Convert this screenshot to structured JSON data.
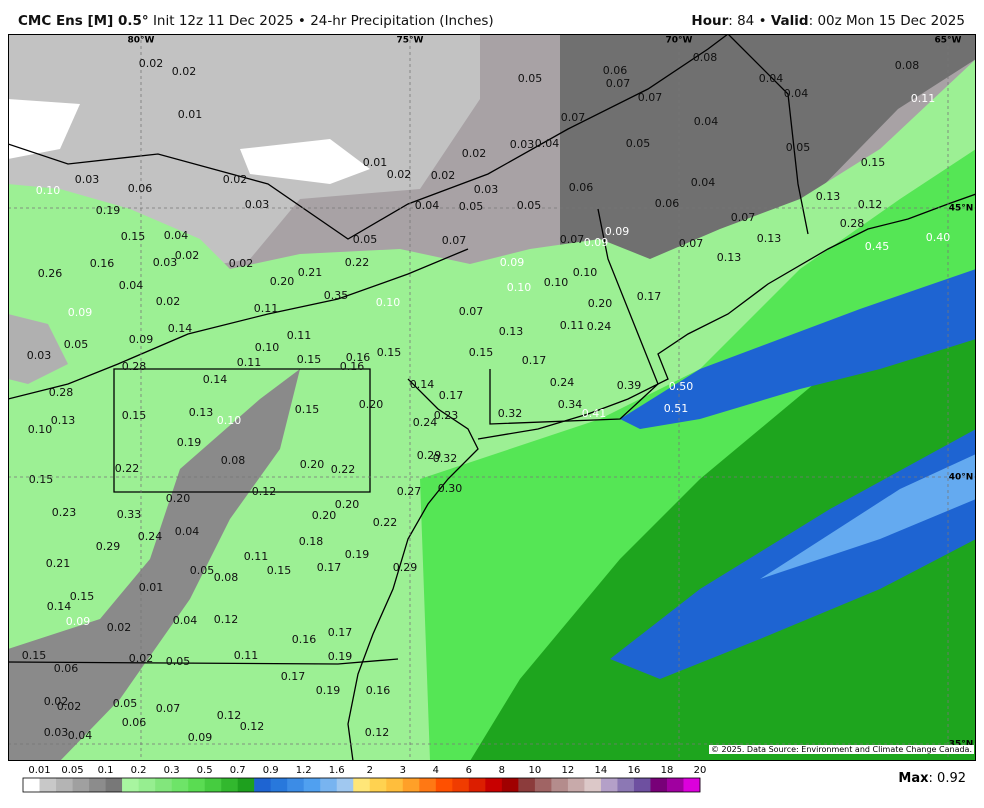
{
  "header": {
    "model": "CMC Ens [M] 0.5°",
    "init": "Init 12z 11 Dec 2025",
    "separator": "•",
    "product": "24-hr Precipitation (Inches)",
    "hour_label": "Hour",
    "hour": "84",
    "valid_label": "Valid",
    "valid": "00z Mon 15 Dec 2025"
  },
  "graticule": {
    "longitudes": [
      "80°W",
      "75°W",
      "70°W",
      "65°W"
    ],
    "latitudes": [
      "45°N",
      "40°N",
      "35°N"
    ]
  },
  "map": {
    "labels": [
      "0.02",
      "0.02",
      "0.01",
      "0.05",
      "0.06",
      "0.07",
      "0.08",
      "0.08",
      "0.04",
      "0.04",
      "0.07",
      "0.07",
      "0.04",
      "0.11",
      "0.05",
      "0.05",
      "0.15",
      "0.01",
      "0.02",
      "0.03",
      "0.04",
      "0.02",
      "0.02",
      "0.03",
      "0.06",
      "0.04",
      "0.10",
      "0.03",
      "0.06",
      "0.02",
      "0.03",
      "0.04",
      "0.05",
      "0.05",
      "0.06",
      "0.13",
      "0.12",
      "0.19",
      "0.15",
      "0.04",
      "0.05",
      "0.07",
      "0.07",
      "0.09",
      "0.09",
      "0.07",
      "0.07",
      "0.28",
      "0.13",
      "0.45",
      "0.40",
      "0.26",
      "0.16",
      "0.03",
      "0.02",
      "0.02",
      "0.22",
      "0.09",
      "0.10",
      "0.13",
      "0.21",
      "0.20",
      "0.35",
      "0.10",
      "0.04",
      "0.02",
      "0.10",
      "0.10",
      "0.17",
      "0.20",
      "0.09",
      "0.11",
      "0.07",
      "0.14",
      "0.11",
      "0.13",
      "0.11",
      "0.24",
      "0.09",
      "0.05",
      "0.10",
      "0.03",
      "0.11",
      "0.15",
      "0.16",
      "0.15",
      "0.15",
      "0.17",
      "0.28",
      "0.16",
      "0.14",
      "0.14",
      "0.17",
      "0.24",
      "0.39",
      "0.50",
      "0.28",
      "0.15",
      "0.13",
      "0.10",
      "0.15",
      "0.20",
      "0.23",
      "0.32",
      "0.34",
      "0.41",
      "0.51",
      "0.13",
      "0.10",
      "0.24",
      "0.19",
      "0.08",
      "0.20",
      "0.22",
      "0.29",
      "0.32",
      "0.22",
      "0.15",
      "0.12",
      "0.20",
      "0.27",
      "0.30",
      "0.20",
      "0.23",
      "0.33",
      "0.20",
      "0.22",
      "0.04",
      "0.24",
      "0.18",
      "0.29",
      "0.19",
      "0.11",
      "0.21",
      "0.05",
      "0.15",
      "0.08",
      "0.17",
      "0.29",
      "0.01",
      "0.15",
      "0.14",
      "0.04",
      "0.12",
      "0.02",
      "0.09",
      "0.16",
      "0.17",
      "0.15",
      "0.02",
      "0.05",
      "0.11",
      "0.19",
      "0.06",
      "0.17",
      "0.19",
      "0.16",
      "0.02",
      "0.02",
      "0.05",
      "0.07",
      "0.06",
      "0.12",
      "0.12",
      "0.03",
      "0.04",
      "0.09",
      "0.12"
    ]
  },
  "legend": {
    "labels": [
      "0.01",
      "0.05",
      "0.1",
      "0.2",
      "0.3",
      "0.5",
      "0.7",
      "0.9",
      "1.2",
      "1.6",
      "2",
      "3",
      "4",
      "6",
      "8",
      "10",
      "12",
      "14",
      "16",
      "18",
      "20"
    ],
    "colors": [
      "#ffffff",
      "#c8c8c8",
      "#b4b4b4",
      "#a0a0a0",
      "#8c8c8c",
      "#787878",
      "#a8f5a0",
      "#96ee90",
      "#82e67c",
      "#6ee468",
      "#5adc52",
      "#46cc40",
      "#32b82e",
      "#1ea01e",
      "#1e64d2",
      "#2878dc",
      "#3c8ce6",
      "#50a0f0",
      "#78b4f0",
      "#a0c8f0",
      "#ffe678",
      "#ffd250",
      "#ffbe3c",
      "#ffa028",
      "#ff7814",
      "#ff5000",
      "#f03c00",
      "#dc1e00",
      "#c80000",
      "#a00000",
      "#8c3c3c",
      "#a06464",
      "#b48c8c",
      "#c8aaaa",
      "#dcc8c8",
      "#b4a0c8",
      "#8c78b4",
      "#6e50a0",
      "#780078",
      "#a000a0",
      "#dc00dc"
    ],
    "max_label": "Max",
    "max_value": 0.92
  },
  "credit": "© 2025. Data Source: Environment and Climate Change Canada."
}
